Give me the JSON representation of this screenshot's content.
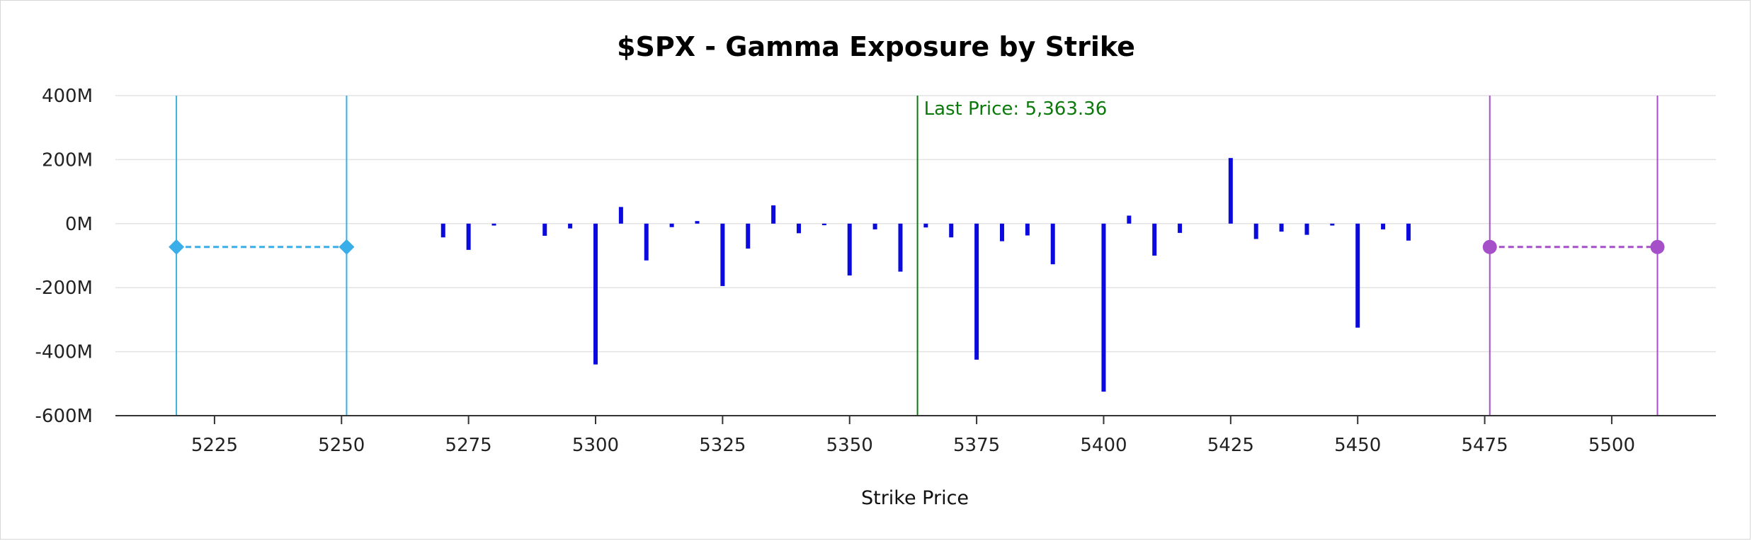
{
  "chart_data": {
    "type": "bar",
    "title": "$SPX - Gamma Exposure by Strike",
    "xlabel": "Strike Price",
    "ylabel": "",
    "xlim": [
      5205.5,
      5520.5
    ],
    "ylim": [
      -600,
      400
    ],
    "x_ticks": [
      5225,
      5250,
      5275,
      5300,
      5325,
      5350,
      5375,
      5400,
      5425,
      5450,
      5475,
      5500
    ],
    "y_ticks": [
      400,
      200,
      0,
      -200,
      -400,
      -600
    ],
    "y_tick_labels": [
      "400M",
      "200M",
      "0M",
      "-200M",
      "-400M",
      "-600M"
    ],
    "grid": "horizontal",
    "bar_color": "#0a0adf",
    "series": [
      {
        "unit": "M",
        "x": [
          5270,
          5275,
          5280,
          5290,
          5295,
          5300,
          5305,
          5310,
          5315,
          5320,
          5325,
          5330,
          5335,
          5340,
          5345,
          5350,
          5355,
          5360,
          5365,
          5370,
          5375,
          5380,
          5385,
          5390,
          5400,
          5405,
          5410,
          5415,
          5425,
          5430,
          5435,
          5440,
          5445,
          5450,
          5455,
          5460
        ],
        "values": [
          -43,
          -82,
          -6,
          -38,
          -15,
          -440,
          52,
          -115,
          -11,
          8,
          -195,
          -78,
          57,
          -30,
          -5,
          -162,
          -18,
          -150,
          -12,
          -43,
          -425,
          -55,
          -37,
          -127,
          -525,
          25,
          -100,
          -29,
          205,
          -48,
          -25,
          -35,
          -6,
          -325,
          -18,
          -53
        ]
      }
    ],
    "price_line": {
      "label": "Last Price: 5,363.36",
      "x": 5363.36,
      "color": "#0a7a0a"
    },
    "left_range": {
      "x1": 5217.5,
      "x2": 5251,
      "y": -73,
      "color": "#3aaee8",
      "marker": "diamond"
    },
    "right_range": {
      "x1": 5476,
      "x2": 5509,
      "y": -73,
      "color": "#a54fc8",
      "marker": "circle"
    }
  }
}
